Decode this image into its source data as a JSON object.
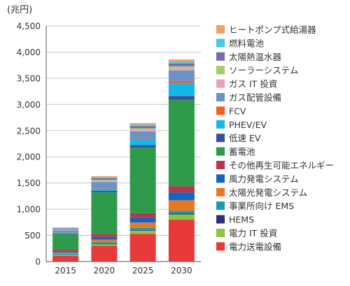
{
  "chart_data": {
    "type": "bar",
    "stacked": true,
    "unit_label": "(兆円)",
    "categories": [
      "2015",
      "2020",
      "2025",
      "2030"
    ],
    "ylim": [
      0,
      4500
    ],
    "yticks": [
      "0",
      "500",
      "1,000",
      "1,500",
      "2,000",
      "2,500",
      "3,000",
      "3,500",
      "4,000",
      "4,500"
    ],
    "ytick_values": [
      0,
      500,
      1000,
      1500,
      2000,
      2500,
      3000,
      3500,
      4000,
      4500
    ],
    "grid": "horizontal",
    "legend_position": "right",
    "series": [
      {
        "name": "電力送電設備",
        "color": "#e83a3a",
        "values": [
          110,
          300,
          530,
          800
        ]
      },
      {
        "name": "電力 IT 投資",
        "color": "#8dc63f",
        "values": [
          15,
          30,
          60,
          100
        ]
      },
      {
        "name": "HEMS",
        "color": "#2e2e7a",
        "values": [
          5,
          10,
          15,
          20
        ]
      },
      {
        "name": "事業所向け EMS",
        "color": "#1a9cb0",
        "values": [
          20,
          30,
          40,
          50
        ]
      },
      {
        "name": "太陽光発電システム",
        "color": "#e87722",
        "values": [
          20,
          50,
          100,
          200
        ]
      },
      {
        "name": "風力発電システム",
        "color": "#1565c0",
        "values": [
          20,
          50,
          100,
          150
        ]
      },
      {
        "name": "その他再生可能エネルギー",
        "color": "#b5374a",
        "values": [
          30,
          50,
          80,
          120
        ]
      },
      {
        "name": "蓄電池",
        "color": "#2e9a4a",
        "values": [
          300,
          800,
          1250,
          1650
        ]
      },
      {
        "name": "低速 EV",
        "color": "#3a4fa0",
        "values": [
          10,
          30,
          50,
          70
        ]
      },
      {
        "name": "PHEV/EV",
        "color": "#14b8e8",
        "values": [
          20,
          40,
          100,
          250
        ]
      },
      {
        "name": "FCV",
        "color": "#f06020",
        "values": [
          5,
          10,
          20,
          40
        ]
      },
      {
        "name": "ガス配管設備",
        "color": "#6a93cc",
        "values": [
          40,
          120,
          140,
          200
        ]
      },
      {
        "name": "ガス IT 投資",
        "color": "#e9a0b8",
        "values": [
          10,
          20,
          30,
          40
        ]
      },
      {
        "name": "ソーラーシステム",
        "color": "#a8cc6a",
        "values": [
          10,
          20,
          30,
          40
        ]
      },
      {
        "name": "太陽熱温水器",
        "color": "#7a68b0",
        "values": [
          15,
          30,
          40,
          50
        ]
      },
      {
        "name": "燃料電池",
        "color": "#4ac6e6",
        "values": [
          10,
          20,
          30,
          40
        ]
      },
      {
        "name": "ヒートポンプ式給湯器",
        "color": "#f4a060",
        "values": [
          10,
          20,
          30,
          40
        ]
      }
    ]
  }
}
